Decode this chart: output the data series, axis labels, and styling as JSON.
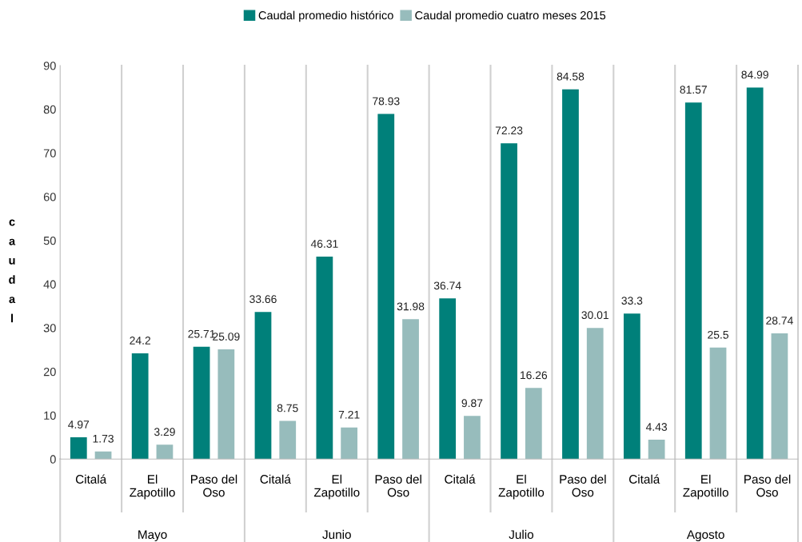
{
  "chart_data": {
    "type": "bar",
    "categories": [
      "Citalá",
      "El\nZapotillo",
      "Paso del\nOso",
      "Citalá",
      "El\nZapotillo",
      "Paso del\nOso",
      "Citalá",
      "El\nZapotillo",
      "Paso del\nOso",
      "Citalá",
      "El\nZapotillo",
      "Paso del\nOso"
    ],
    "series": [
      {
        "name": "Caudal promedio histórico",
        "color": "#00807a",
        "values": [
          4.97,
          24.2,
          25.71,
          33.66,
          46.31,
          78.93,
          36.74,
          72.23,
          84.58,
          33.3,
          81.57,
          84.99
        ]
      },
      {
        "name": "Caudal promedio cuatro meses 2015",
        "color": "#97bcbc",
        "values": [
          1.73,
          3.29,
          25.09,
          8.75,
          7.21,
          31.98,
          9.87,
          16.26,
          30.01,
          4.43,
          25.5,
          28.74
        ]
      }
    ],
    "annotations": [
      "Mayo",
      "Junio",
      "Julio",
      "Agosto"
    ],
    "ylabel": "caudal",
    "ylim": [
      0,
      90
    ],
    "yticks": [
      0,
      10,
      20,
      30,
      40,
      50,
      60,
      70,
      80,
      90
    ],
    "data_labels": true,
    "legend": "top",
    "grid": false
  }
}
